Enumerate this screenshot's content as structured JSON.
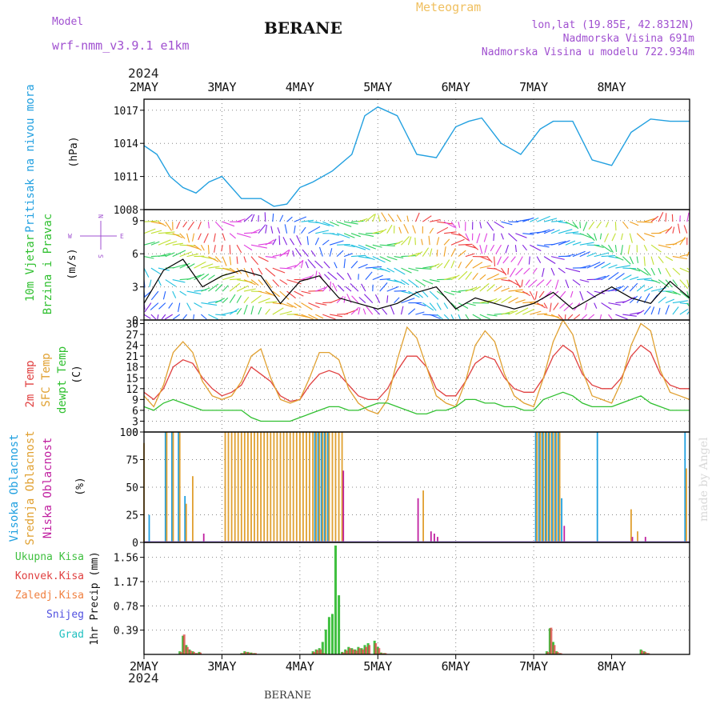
{
  "header": {
    "model_label": "Model",
    "model_name": "wrf-nmm_v3.9.1 e1km",
    "station": "BERANE",
    "meteogram_label": "Meteogram",
    "lonlat": "lon,lat (19.85E, 42.8312N)",
    "elevation": "Nadmorska Visina 691m",
    "model_elevation": "Nadmorska Visina u modelu 722.934m",
    "year": "2024",
    "footer_station": "BERANE",
    "credit": "made by Angel"
  },
  "colors": {
    "pressure": "#22a0e0",
    "t2m": "#e04040",
    "tsfc": "#e0a030",
    "dewpt": "#30c030",
    "high_cloud": "#20a0e0",
    "mid_cloud": "#e0a030",
    "low_cloud": "#c020a0",
    "total_precip": "#40c040",
    "conv_precip": "#e04040",
    "grid_precip": "#f08040"
  },
  "axes": {
    "x_ticks": [
      "2MAY",
      "3MAY",
      "4MAY",
      "5MAY",
      "6MAY",
      "7MAY",
      "8MAY"
    ]
  },
  "panels": {
    "pressure": {
      "ylabel_1": "Pritisak na nivou mora",
      "ylabel_2": "(hPa)",
      "ticks": [
        "1008",
        "1011",
        "1014",
        "1017"
      ]
    },
    "wind": {
      "ylabel_1": "10m Vjetar",
      "ylabel_2": "Brzina i Pravac",
      "ylabel_3": "(m/s)",
      "ticks": [
        "0",
        "3",
        "6",
        "9"
      ],
      "compass": [
        "N",
        "S",
        "W",
        "E"
      ]
    },
    "temp": {
      "ylabel_1": "2m Temp",
      "ylabel_2": "SFC Temp",
      "ylabel_3": "dewpt Temp",
      "ylabel_4": "(C)",
      "ticks": [
        "0",
        "3",
        "6",
        "9",
        "12",
        "15",
        "18",
        "21",
        "24",
        "27",
        "30"
      ]
    },
    "cloud": {
      "ylabel_1": "Visoka Oblacnost",
      "ylabel_2": "Srednja Oblacnost",
      "ylabel_3": "Niska Oblacnost",
      "ylabel_4": "(%)",
      "ticks": [
        "0",
        "25",
        "50",
        "75",
        "100"
      ]
    },
    "precip": {
      "ylabel": "1hr Precip (mm)",
      "ticks": [
        "0.39",
        "0.78",
        "1.17",
        "1.56"
      ],
      "legend": [
        "Ukupna Kisa",
        "Konvek.Kisa",
        "Zaledj.Kisa",
        "Snijeg",
        "Grad"
      ]
    }
  },
  "chart_data": [
    {
      "type": "line",
      "title": "Pritisak na nivou mora",
      "ylabel": "(hPa)",
      "ylim": [
        1008,
        1018
      ],
      "x": [
        0,
        4,
        8,
        12,
        16,
        20,
        24,
        30,
        36,
        40,
        44,
        48,
        52,
        58,
        64,
        68,
        72,
        78,
        84,
        90,
        96,
        100,
        104,
        110,
        116,
        122,
        126,
        132,
        138,
        144,
        150,
        156,
        162,
        168
      ],
      "series": [
        {
          "name": "",
          "values": [
            1013.8,
            1013.0,
            1011.0,
            1010.0,
            1009.5,
            1010.5,
            1011.0,
            1009.0,
            1009.0,
            1008.3,
            1008.5,
            1010.0,
            1010.5,
            1011.5,
            1013.0,
            1016.5,
            1017.3,
            1016.5,
            1013.0,
            1012.7,
            1015.5,
            1016.0,
            1016.3,
            1014.0,
            1013.0,
            1015.3,
            1016.0,
            1016.0,
            1012.5,
            1012.0,
            1015.0,
            1016.2,
            1016.0,
            1016.0
          ]
        }
      ]
    },
    {
      "type": "line",
      "title": "10m Vjetar Brzina i Pravac",
      "ylabel": "(m/s)",
      "ylim": [
        0,
        10
      ],
      "x": [
        0,
        6,
        12,
        18,
        24,
        30,
        36,
        42,
        48,
        54,
        60,
        66,
        72,
        78,
        84,
        90,
        96,
        102,
        108,
        114,
        120,
        126,
        132,
        138,
        144,
        150,
        156,
        162,
        168
      ],
      "series": [
        {
          "name": "",
          "values": [
            1.5,
            4.5,
            5.5,
            3.0,
            4.0,
            4.5,
            4.0,
            1.5,
            3.5,
            4.0,
            2.0,
            1.5,
            1.0,
            1.5,
            2.5,
            3.0,
            1.0,
            2.0,
            1.5,
            1.0,
            1.5,
            2.5,
            1.0,
            2.0,
            3.0,
            2.0,
            1.5,
            3.5,
            2.0
          ]
        }
      ]
    },
    {
      "type": "line",
      "title": "2m Temp / SFC Temp / dewpt Temp",
      "ylabel": "(C)",
      "ylim": [
        0,
        31
      ],
      "x": [
        0,
        3,
        6,
        9,
        12,
        15,
        18,
        21,
        24,
        27,
        30,
        33,
        36,
        39,
        42,
        45,
        48,
        51,
        54,
        57,
        60,
        63,
        66,
        69,
        72,
        75,
        78,
        81,
        84,
        87,
        90,
        93,
        96,
        99,
        102,
        105,
        108,
        111,
        114,
        117,
        120,
        123,
        126,
        129,
        132,
        135,
        138,
        141,
        144,
        147,
        150,
        153,
        156,
        159,
        162,
        165,
        168
      ],
      "series": [
        {
          "name": "2m Temp",
          "values": [
            11,
            9,
            12,
            18,
            20,
            19,
            15,
            12,
            10,
            11,
            13,
            18,
            16,
            14,
            10,
            8.5,
            9,
            13,
            16,
            17,
            16,
            13,
            10,
            9,
            9,
            12,
            17,
            21,
            21,
            18,
            12,
            10,
            10,
            14,
            19,
            21,
            20,
            15,
            12,
            11,
            11,
            15,
            21,
            24,
            22,
            16,
            13,
            12,
            12,
            15,
            21,
            24,
            22,
            16,
            13,
            12,
            12
          ]
        },
        {
          "name": "SFC Temp",
          "values": [
            10,
            7,
            13,
            22,
            25,
            22,
            14,
            10,
            9,
            10,
            14,
            21,
            23,
            15,
            9,
            8,
            9,
            15,
            22,
            22,
            20,
            12,
            8,
            6,
            5,
            9,
            20,
            29,
            26,
            18,
            10,
            8,
            7,
            14,
            24,
            28,
            25,
            16,
            10,
            8,
            7,
            15,
            25,
            31,
            27,
            17,
            10,
            9,
            8,
            14,
            24,
            30,
            28,
            17,
            11,
            10,
            9
          ]
        },
        {
          "name": "dewpt Temp",
          "values": [
            7,
            6,
            8,
            9,
            8,
            7,
            6,
            6,
            6,
            6,
            6,
            4,
            3,
            3,
            3,
            3,
            4,
            5,
            6,
            7,
            7,
            6,
            6,
            7,
            8,
            8,
            7,
            6,
            5,
            5,
            6,
            6,
            7,
            9,
            9,
            8,
            8,
            7,
            7,
            6,
            6,
            9,
            10,
            11,
            10,
            8,
            7,
            7,
            7,
            8,
            9,
            10,
            8,
            7,
            6,
            6,
            6
          ]
        }
      ]
    },
    {
      "type": "bar",
      "title": "Visoka / Srednja / Niska Oblacnost",
      "ylabel": "(%)",
      "ylim": [
        0,
        100
      ],
      "x": [
        0,
        2,
        5,
        7,
        9,
        11,
        13,
        15,
        18,
        20,
        24,
        25,
        26,
        27,
        28,
        29,
        30,
        31,
        32,
        33,
        34,
        35,
        36,
        37,
        38,
        39,
        40,
        41,
        42,
        43,
        44,
        45,
        46,
        47,
        48,
        49,
        50,
        51,
        52,
        53,
        54,
        55,
        56,
        57,
        58,
        59,
        60,
        61,
        62,
        63,
        64,
        65,
        66,
        67,
        68,
        84,
        86,
        88,
        89,
        90,
        91,
        120,
        121,
        122,
        123,
        124,
        125,
        126,
        127,
        128,
        129,
        133,
        134,
        135,
        140,
        150,
        152,
        154,
        167
      ],
      "series": [
        {
          "name": "Visoka Oblacnost",
          "values": [
            0,
            25,
            0,
            100,
            100,
            100,
            42,
            0,
            0,
            0,
            0,
            0,
            0,
            0,
            0,
            0,
            0,
            0,
            0,
            0,
            0,
            0,
            0,
            0,
            0,
            0,
            0,
            0,
            0,
            0,
            0,
            0,
            0,
            0,
            0,
            0,
            0,
            0,
            0,
            100,
            100,
            100,
            100,
            100,
            0,
            0,
            0,
            0,
            0,
            0,
            0,
            0,
            0,
            0,
            0,
            0,
            0,
            0,
            0,
            0,
            0,
            0,
            100,
            100,
            100,
            100,
            100,
            100,
            100,
            100,
            40,
            0,
            0,
            0,
            100,
            0,
            0,
            0,
            100
          ]
        },
        {
          "name": "Srednja Oblacnost",
          "values": [
            90,
            0,
            0,
            100,
            100,
            100,
            35,
            60,
            0,
            0,
            0,
            100,
            100,
            100,
            100,
            100,
            100,
            100,
            100,
            100,
            100,
            100,
            100,
            100,
            100,
            100,
            100,
            100,
            100,
            100,
            100,
            100,
            100,
            100,
            100,
            100,
            100,
            100,
            100,
            100,
            100,
            100,
            100,
            100,
            100,
            100,
            100,
            100,
            0,
            0,
            0,
            0,
            0,
            0,
            0,
            0,
            47,
            0,
            0,
            0,
            0,
            0,
            100,
            100,
            100,
            100,
            100,
            100,
            100,
            100,
            0,
            0,
            0,
            0,
            0,
            30,
            10,
            0,
            67
          ]
        },
        {
          "name": "Niska Oblacnost",
          "values": [
            0,
            0,
            0,
            0,
            0,
            0,
            0,
            0,
            8,
            0,
            0,
            0,
            0,
            0,
            0,
            0,
            0,
            0,
            0,
            0,
            0,
            0,
            0,
            0,
            0,
            0,
            0,
            0,
            0,
            0,
            0,
            0,
            0,
            0,
            0,
            0,
            0,
            0,
            0,
            0,
            0,
            0,
            0,
            0,
            0,
            0,
            0,
            65,
            0,
            0,
            0,
            0,
            0,
            0,
            0,
            40,
            0,
            10,
            8,
            5,
            0,
            0,
            0,
            0,
            0,
            0,
            0,
            0,
            0,
            0,
            15,
            0,
            0,
            0,
            0,
            5,
            0,
            5,
            0
          ]
        }
      ]
    },
    {
      "type": "bar",
      "title": "1hr Precip",
      "ylabel": "1hr Precip (mm)",
      "ylim": [
        0,
        1.8
      ],
      "x": [
        11,
        12,
        13,
        14,
        15,
        16,
        17,
        30,
        31,
        32,
        33,
        34,
        52,
        53,
        54,
        55,
        56,
        57,
        58,
        59,
        60,
        61,
        62,
        63,
        64,
        65,
        66,
        67,
        68,
        69,
        71,
        72,
        73,
        74,
        124,
        125,
        126,
        127,
        128,
        153,
        154,
        155
      ],
      "series": [
        {
          "name": "Ukupna Kisa",
          "values": [
            0.05,
            0.3,
            0.15,
            0.08,
            0.05,
            0.02,
            0.04,
            0.02,
            0.05,
            0.04,
            0.03,
            0.02,
            0.05,
            0.08,
            0.1,
            0.2,
            0.4,
            0.6,
            0.65,
            1.75,
            0.95,
            0.04,
            0.08,
            0.12,
            0.1,
            0.08,
            0.12,
            0.1,
            0.15,
            0.18,
            0.22,
            0.12,
            0.03,
            0.02,
            0.05,
            0.42,
            0.2,
            0.05,
            0.02,
            0.08,
            0.05,
            0.02
          ]
        },
        {
          "name": "Konvek.Kisa",
          "values": [
            0.04,
            0.32,
            0.12,
            0.06,
            0.04,
            0.02,
            0.03,
            0.02,
            0.04,
            0.03,
            0.02,
            0.02,
            0.04,
            0.07,
            0.08,
            0.02,
            0.0,
            0.0,
            0.0,
            0.0,
            0.0,
            0.03,
            0.06,
            0.1,
            0.08,
            0.06,
            0.1,
            0.08,
            0.12,
            0.15,
            0.18,
            0.1,
            0.02,
            0.02,
            0.04,
            0.43,
            0.15,
            0.04,
            0.02,
            0.06,
            0.04,
            0.02
          ]
        }
      ]
    }
  ]
}
